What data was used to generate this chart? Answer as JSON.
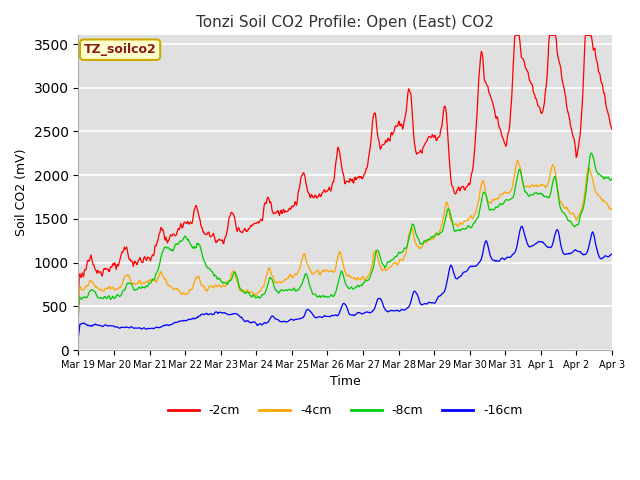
{
  "title": "Tonzi Soil CO2 Profile: Open (East) CO2",
  "xlabel": "Time",
  "ylabel": "Soil CO2 (mV)",
  "ylim": [
    0,
    3600
  ],
  "yticks": [
    0,
    500,
    1000,
    1500,
    2000,
    2500,
    3000,
    3500
  ],
  "legend_label": "TZ_soilco2",
  "series_labels": [
    "-2cm",
    "-4cm",
    "-8cm",
    "-16cm"
  ],
  "series_colors": [
    "#ff0000",
    "#ffa500",
    "#00cc00",
    "#0000ff"
  ],
  "background_color": "#ffffff",
  "plot_bg_color": "#e0e0e0",
  "grid_color": "#ffffff",
  "tick_labels": [
    "Mar 19",
    "Mar 20",
    "Mar 21",
    "Mar 22",
    "Mar 23",
    "Mar 24",
    "Mar 25",
    "Mar 26",
    "Mar 27",
    "Mar 28",
    "Mar 29",
    "Mar 30",
    "Mar 31",
    "Apr 1",
    "Apr 2",
    "Apr 3"
  ]
}
